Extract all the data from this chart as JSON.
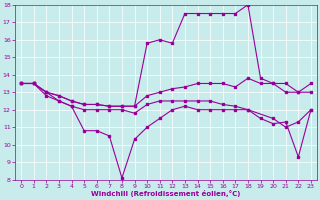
{
  "title": "",
  "xlabel": "Windchill (Refroidissement éolien,°C)",
  "bg_color": "#c8ecec",
  "grid_color": "#ffffff",
  "line_color": "#990099",
  "xlim": [
    -0.5,
    23.5
  ],
  "ylim": [
    8,
    18
  ],
  "xticks": [
    0,
    1,
    2,
    3,
    4,
    5,
    6,
    7,
    8,
    9,
    10,
    11,
    12,
    13,
    14,
    15,
    16,
    17,
    18,
    19,
    20,
    21,
    22,
    23
  ],
  "yticks": [
    8,
    9,
    10,
    11,
    12,
    13,
    14,
    15,
    16,
    17,
    18
  ],
  "line1_x": [
    0,
    1,
    2,
    3,
    4,
    5,
    6,
    7,
    8,
    9,
    10,
    11,
    12,
    13,
    14,
    15,
    16,
    17,
    18,
    19,
    20,
    21,
    22,
    23
  ],
  "line1_y": [
    13.5,
    13.5,
    13.0,
    12.5,
    12.2,
    10.8,
    10.8,
    10.5,
    8.1,
    10.3,
    11.0,
    11.5,
    12.0,
    12.2,
    12.0,
    12.0,
    12.0,
    12.0,
    12.0,
    11.5,
    11.2,
    11.3,
    9.3,
    12.0
  ],
  "line2_x": [
    0,
    1,
    2,
    3,
    4,
    5,
    6,
    7,
    8,
    9,
    10,
    11,
    12,
    13,
    14,
    15,
    16,
    17,
    18,
    19,
    20,
    21,
    22,
    23
  ],
  "line2_y": [
    13.5,
    13.5,
    13.0,
    12.8,
    12.5,
    12.3,
    12.3,
    12.2,
    12.2,
    12.2,
    12.8,
    13.0,
    13.2,
    13.3,
    13.5,
    13.5,
    13.5,
    13.3,
    13.8,
    13.5,
    13.5,
    13.0,
    13.0,
    13.5
  ],
  "line3_x": [
    0,
    1,
    2,
    3,
    4,
    5,
    6,
    7,
    8,
    9,
    10,
    11,
    12,
    13,
    14,
    15,
    16,
    17,
    18,
    19,
    20,
    21,
    22,
    23
  ],
  "line3_y": [
    13.5,
    13.5,
    13.0,
    12.8,
    12.5,
    12.3,
    12.3,
    12.2,
    12.2,
    12.2,
    15.8,
    16.0,
    15.8,
    17.5,
    17.5,
    17.5,
    17.5,
    17.5,
    18.0,
    13.8,
    13.5,
    13.5,
    13.0,
    13.0
  ],
  "line4_x": [
    0,
    1,
    2,
    3,
    4,
    5,
    6,
    7,
    8,
    9,
    10,
    11,
    12,
    13,
    14,
    15,
    16,
    17,
    18,
    20,
    21,
    22,
    23
  ],
  "line4_y": [
    13.5,
    13.5,
    12.8,
    12.5,
    12.2,
    12.0,
    12.0,
    12.0,
    12.0,
    11.8,
    12.3,
    12.5,
    12.5,
    12.5,
    12.5,
    12.5,
    12.3,
    12.2,
    12.0,
    11.5,
    11.0,
    11.3,
    12.0
  ]
}
